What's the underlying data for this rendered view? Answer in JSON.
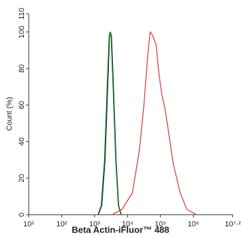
{
  "chart_data": {
    "type": "line",
    "xlabel": "Beta Actin-iFluor™ 488",
    "ylabel": "Count (%)",
    "xscale": "log",
    "xlim": [
      10,
      15848932
    ],
    "xticks": [
      {
        "value": 10,
        "label": "10¹"
      },
      {
        "value": 100,
        "label": "10²"
      },
      {
        "value": 1000,
        "label": "10³"
      },
      {
        "value": 10000,
        "label": "10⁴"
      },
      {
        "value": 100000,
        "label": "10⁵"
      },
      {
        "value": 1000000,
        "label": "10⁶"
      },
      {
        "value": 15848932,
        "label": "10⁷·²"
      }
    ],
    "ylim": [
      0,
      110
    ],
    "yticks": [
      0,
      20,
      40,
      60,
      80,
      100,
      110
    ],
    "series": [
      {
        "color": "#000000",
        "x": [
          1300,
          1650,
          2080,
          2500,
          2850,
          3050,
          3270,
          3750,
          4500,
          5400,
          6500
        ],
        "values": [
          0,
          5,
          30,
          70,
          98,
          100,
          97,
          70,
          30,
          5,
          0
        ]
      },
      {
        "color": "#1a9a3a",
        "x": [
          1259,
          1585,
          1995,
          2399,
          2754,
          2951,
          3162,
          3631,
          4365,
          5248,
          6310
        ],
        "values": [
          0,
          5,
          30,
          70,
          98,
          100,
          97,
          70,
          30,
          5,
          0
        ]
      },
      {
        "color": "#e03030",
        "x": [
          3388,
          6918,
          14125,
          22909,
          31623,
          41687,
          48978,
          58884,
          74131,
          89125,
          109648,
          138038,
          177828,
          245471,
          398107,
          630957,
          1258925
        ],
        "values": [
          0,
          3,
          12,
          35,
          60,
          88,
          100,
          98,
          93,
          78,
          66,
          58,
          45,
          28,
          12,
          3,
          0
        ]
      }
    ]
  }
}
